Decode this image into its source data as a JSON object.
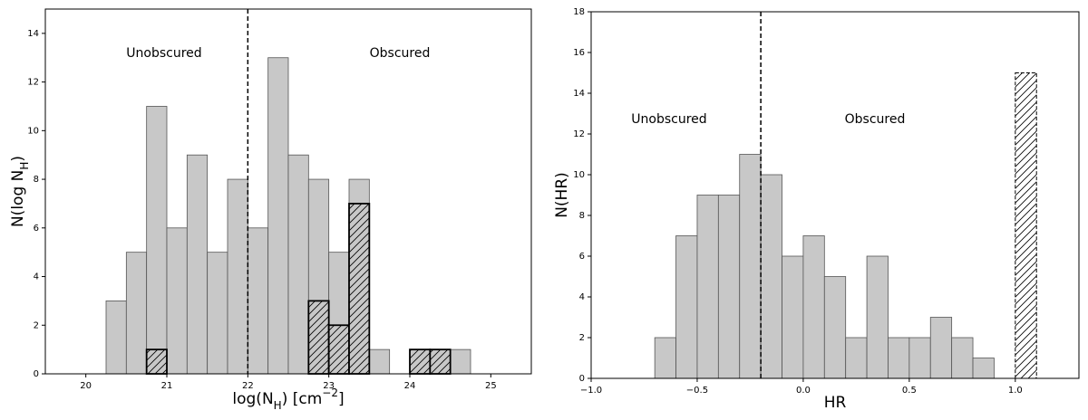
{
  "chart_data": [
    {
      "type": "histogram",
      "xlabel": [
        "log(N",
        "H",
        ") [cm",
        "−2",
        "]"
      ],
      "ylabel": [
        "N(log N",
        "H",
        ")"
      ],
      "xlim": [
        19.5,
        25.5
      ],
      "ylim": [
        0,
        15
      ],
      "xticks": [
        20,
        21,
        22,
        23,
        24,
        25
      ],
      "yticks": [
        0,
        2,
        4,
        6,
        8,
        10,
        12,
        14
      ],
      "vline": 22,
      "annotations": [
        "Unobscured",
        "Obscured"
      ],
      "series": [
        {
          "color": "#c8c8c8",
          "edgecolor": "#555555",
          "hatch": false,
          "bins": [
            20.0,
            20.25,
            20.5,
            20.75,
            21.0,
            21.25,
            21.5,
            21.75,
            22.0,
            22.25,
            22.5,
            22.75,
            23.0,
            23.25,
            23.5,
            23.75,
            24.0,
            24.25,
            24.5,
            24.75
          ],
          "values": [
            0,
            3,
            5,
            11,
            6,
            9,
            5,
            8,
            6,
            13,
            9,
            8,
            5,
            8,
            1,
            0,
            1,
            1,
            1
          ]
        },
        {
          "color": "#c8c8c8",
          "edgecolor": "#000000",
          "hatch": true,
          "bins": [
            20.0,
            20.25,
            20.5,
            20.75,
            21.0,
            21.25,
            21.5,
            21.75,
            22.0,
            22.25,
            22.5,
            22.75,
            23.0,
            23.25,
            23.5,
            23.75,
            24.0,
            24.25,
            24.5,
            24.75
          ],
          "values": [
            0,
            0,
            0,
            1,
            0,
            0,
            0,
            0,
            0,
            0,
            0,
            3,
            2,
            7,
            0,
            0,
            1,
            1,
            0
          ]
        }
      ]
    },
    {
      "type": "histogram",
      "xlabel": [
        "HR"
      ],
      "ylabel": [
        "N(HR)"
      ],
      "xlim": [
        -1.0,
        1.3
      ],
      "ylim": [
        0,
        18
      ],
      "xticks": [
        {
          "value": -1.0,
          "label": "−1.0"
        },
        {
          "value": -0.5,
          "label": "−0.5"
        },
        {
          "value": 0,
          "label": "0.0"
        },
        0.5,
        {
          "value": 1.0,
          "label": "1.0"
        }
      ],
      "yticks": [
        0,
        2,
        4,
        6,
        8,
        10,
        12,
        14,
        16,
        18
      ],
      "vline": -0.2,
      "annotations": [
        "Unobscured",
        "Obscured"
      ],
      "series": [
        {
          "color": "#c8c8c8",
          "edgecolor": "#555555",
          "hatch": false,
          "bins": [
            -0.7,
            -0.6,
            -0.5,
            -0.4,
            -0.3,
            -0.2,
            -0.1,
            0.0,
            0.1,
            0.2,
            0.3,
            0.4,
            0.5,
            0.6,
            0.7,
            0.8,
            0.9
          ],
          "values": [
            2,
            7,
            9,
            9,
            11,
            10,
            6,
            7,
            5,
            2,
            6,
            2,
            2,
            3,
            2,
            1
          ]
        },
        {
          "color": "#ffffff",
          "edgecolor": "#000000",
          "hatch": true,
          "dashed": true,
          "bins": [
            1.0,
            1.1
          ],
          "values": [
            15
          ]
        }
      ]
    }
  ]
}
